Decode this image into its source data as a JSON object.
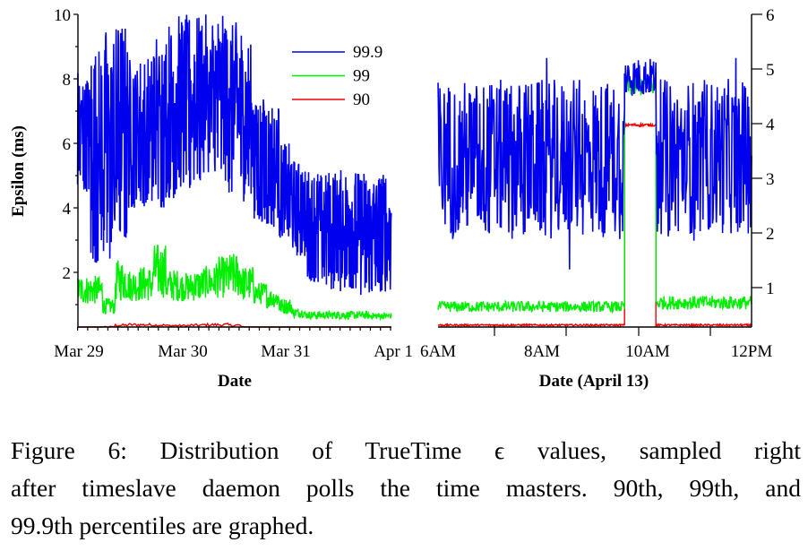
{
  "colors": {
    "p999": "#0000ee",
    "p99": "#00ee00",
    "p90": "#ee0000",
    "axis": "#000000"
  },
  "legend": [
    {
      "label": "99.9",
      "color": "#0000ee"
    },
    {
      "label": "99",
      "color": "#00ee00"
    },
    {
      "label": "90",
      "color": "#ee0000"
    }
  ],
  "chart_data": [
    {
      "type": "line",
      "ylabel": "Epsilon (ms)",
      "xlabel": "Date",
      "ylim": [
        0.3,
        10
      ],
      "yticks": [
        "2",
        "4",
        "6",
        "8",
        "10"
      ],
      "xtick_labels": [
        "Mar 29",
        "Mar 30",
        "Mar 31",
        "Apr 1"
      ],
      "x_unit": "hours since Mar 29 00:00",
      "xlim": [
        -2,
        73
      ],
      "legend_position": "top-right",
      "grid": false,
      "bin_hours": 3,
      "series": [
        {
          "name": "99.9",
          "bin_start": [
            -2,
            1,
            4,
            7,
            10,
            13,
            16,
            19,
            22,
            25,
            28,
            31,
            34,
            37,
            40,
            43,
            46,
            49,
            52,
            55,
            58,
            61,
            64,
            67,
            70
          ],
          "low": [
            4.5,
            2.3,
            2.1,
            3.0,
            4.0,
            4.0,
            4.0,
            4.3,
            4.5,
            4.8,
            5.0,
            4.8,
            4.4,
            4.2,
            3.5,
            3.4,
            3.0,
            2.5,
            1.7,
            1.5,
            1.4,
            1.5,
            1.3,
            1.3,
            1.4
          ],
          "high": [
            8.3,
            9.0,
            9.7,
            10,
            8.7,
            8.7,
            9.5,
            9.8,
            10,
            10,
            10,
            10,
            9.8,
            9.2,
            7.5,
            7.4,
            6.0,
            5.5,
            5.2,
            5.2,
            5.2,
            5.2,
            5.2,
            5.2,
            5.2
          ]
        },
        {
          "name": "99",
          "bin_start": [
            -2,
            1,
            4,
            7,
            10,
            13,
            16,
            19,
            22,
            25,
            28,
            31,
            34,
            37,
            40,
            43,
            46,
            49,
            52,
            55,
            58,
            61,
            64,
            67,
            70
          ],
          "low": [
            1.0,
            1.0,
            0.7,
            1.1,
            1.1,
            1.1,
            1.2,
            1.1,
            1.1,
            1.1,
            1.2,
            1.2,
            1.2,
            1.1,
            1.0,
            0.9,
            0.7,
            0.6,
            0.55,
            0.55,
            0.55,
            0.55,
            0.55,
            0.55,
            0.55
          ],
          "high": [
            1.9,
            1.9,
            1.2,
            2.4,
            2.1,
            2.2,
            2.9,
            2.1,
            2.0,
            2.1,
            2.2,
            2.5,
            2.6,
            2.2,
            1.7,
            1.5,
            1.2,
            0.9,
            0.8,
            0.8,
            0.8,
            0.8,
            0.8,
            0.75,
            0.75
          ]
        },
        {
          "name": "90",
          "bin_start": [
            -2,
            1,
            4,
            7,
            10,
            13,
            16,
            19,
            22,
            25,
            28,
            31,
            34,
            37,
            40,
            43,
            46,
            49,
            52,
            55,
            58,
            61,
            64,
            67,
            70
          ],
          "low": [
            0.3,
            0.3,
            0.3,
            0.32,
            0.33,
            0.33,
            0.33,
            0.32,
            0.32,
            0.32,
            0.33,
            0.33,
            0.32,
            0.3,
            0.3,
            0.3,
            0.3,
            0.3,
            0.3,
            0.3,
            0.3,
            0.3,
            0.3,
            0.3,
            0.3
          ],
          "high": [
            0.3,
            0.3,
            0.33,
            0.4,
            0.42,
            0.42,
            0.4,
            0.38,
            0.38,
            0.4,
            0.42,
            0.42,
            0.4,
            0.32,
            0.3,
            0.3,
            0.3,
            0.3,
            0.3,
            0.3,
            0.3,
            0.3,
            0.3,
            0.3,
            0.3
          ]
        }
      ]
    },
    {
      "type": "line",
      "xlabel": "Date (April 13)",
      "ylim": [
        0.28,
        6
      ],
      "yticks": [
        "1",
        "2",
        "3",
        "4",
        "5",
        "6"
      ],
      "y_axis_side": "right",
      "xtick_labels": [
        "6AM",
        "8AM",
        "10AM",
        "12PM"
      ],
      "x_unit": "hour of day",
      "xlim": [
        6,
        12
      ],
      "grid": false,
      "series": [
        {
          "name": "99.9",
          "segments": [
            {
              "from": 6,
              "to": 9.57,
              "low": 1.3,
              "high": 5.2
            },
            {
              "from": 9.57,
              "to": 10.17,
              "low": 4.5,
              "high": 5.2
            },
            {
              "from": 10.17,
              "to": 12,
              "low": 1.4,
              "high": 5.2
            }
          ]
        },
        {
          "name": "99",
          "segments": [
            {
              "from": 6,
              "to": 9.57,
              "low": 0.55,
              "high": 0.75
            },
            {
              "from": 9.57,
              "to": 10.17,
              "low": 4.5,
              "high": 4.9
            },
            {
              "from": 10.17,
              "to": 12,
              "low": 0.6,
              "high": 0.85
            }
          ]
        },
        {
          "name": "90",
          "segments": [
            {
              "from": 6,
              "to": 9.57,
              "low": 0.3,
              "high": 0.33
            },
            {
              "from": 9.57,
              "to": 10.17,
              "low": 3.95,
              "high": 4.0
            },
            {
              "from": 10.17,
              "to": 12,
              "low": 0.3,
              "high": 0.33
            }
          ]
        }
      ]
    }
  ],
  "caption": {
    "line1": "Figure 6:  Distribution of TrueTime ϵ values, sampled right",
    "line2": "after timeslave daemon polls the time masters. 90th, 99th, and",
    "line3": "99.9th percentiles are graphed."
  }
}
